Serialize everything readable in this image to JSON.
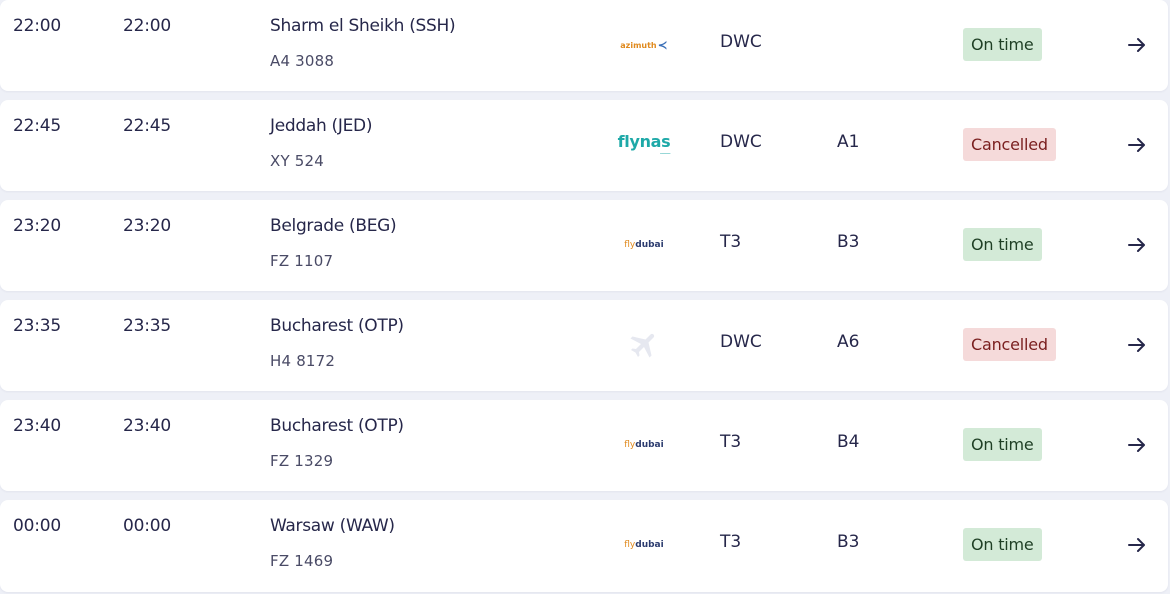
{
  "flights": [
    {
      "scheduled": "22:00",
      "estimated": "22:00",
      "destination": "Sharm el Sheikh (SSH)",
      "flight_number": "A4 3088",
      "airline_logo": "azimuth",
      "logo_text": "azimuth",
      "terminal": "DWC",
      "gate": "",
      "status": "On time",
      "status_type": "ontime"
    },
    {
      "scheduled": "22:45",
      "estimated": "22:45",
      "destination": "Jeddah (JED)",
      "flight_number": "XY 524",
      "airline_logo": "flynas",
      "logo_text": "flynas",
      "terminal": "DWC",
      "gate": "A1",
      "status": "Cancelled",
      "status_type": "cancelled"
    },
    {
      "scheduled": "23:20",
      "estimated": "23:20",
      "destination": "Belgrade (BEG)",
      "flight_number": "FZ 1107",
      "airline_logo": "flydubai",
      "logo_text": "flydubai",
      "terminal": "T3",
      "gate": "B3",
      "status": "On time",
      "status_type": "ontime"
    },
    {
      "scheduled": "23:35",
      "estimated": "23:35",
      "destination": "Bucharest (OTP)",
      "flight_number": "H4 8172",
      "airline_logo": "plane-placeholder-icon",
      "logo_text": "",
      "terminal": "DWC",
      "gate": "A6",
      "status": "Cancelled",
      "status_type": "cancelled"
    },
    {
      "scheduled": "23:40",
      "estimated": "23:40",
      "destination": "Bucharest (OTP)",
      "flight_number": "FZ 1329",
      "airline_logo": "flydubai",
      "logo_text": "flydubai",
      "terminal": "T3",
      "gate": "B4",
      "status": "On time",
      "status_type": "ontime"
    },
    {
      "scheduled": "00:00",
      "estimated": "00:00",
      "destination": "Warsaw (WAW)",
      "flight_number": "FZ 1469",
      "airline_logo": "flydubai",
      "logo_text": "flydubai",
      "terminal": "T3",
      "gate": "B3",
      "status": "On time",
      "status_type": "ontime"
    }
  ],
  "icons": {
    "row_action": "arrow-right-icon"
  },
  "colors": {
    "ontime_bg": "#d3ead7",
    "ontime_text": "#1f3f25",
    "cancelled_bg": "#f5dada",
    "cancelled_text": "#7a1f1f",
    "page_bg": "#eef0f7",
    "text_primary": "#26274a"
  }
}
